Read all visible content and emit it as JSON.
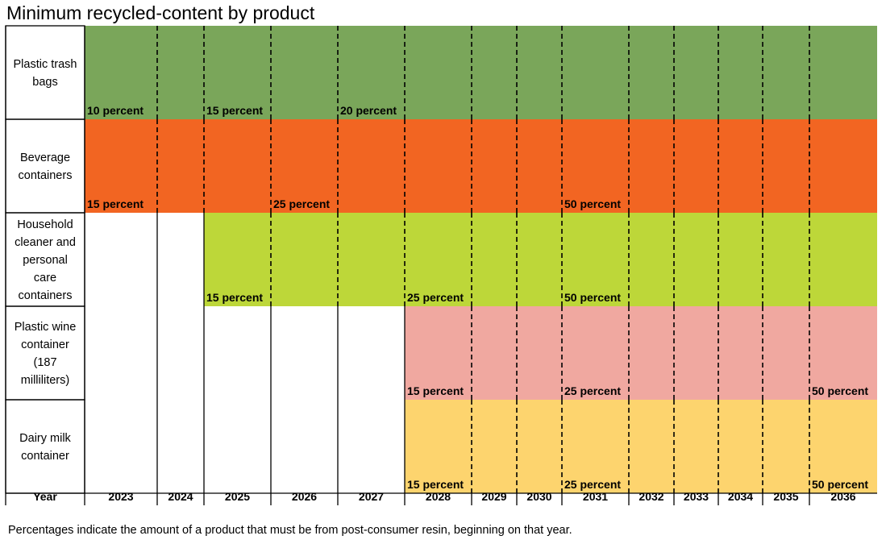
{
  "chart_data": {
    "type": "timeline",
    "title": "Minimum recycled-content by product",
    "year_header": "Year",
    "years": [
      "2023",
      "2024",
      "2025",
      "2026",
      "2027",
      "2028",
      "2029",
      "2030",
      "2031",
      "2032",
      "2033",
      "2034",
      "2035",
      "2036"
    ],
    "rows": [
      {
        "label": "Plastic trash bags",
        "label_lines": [
          "Plastic trash",
          "bags"
        ],
        "color": "#7aa65a",
        "start_year": "2023",
        "milestones": [
          {
            "year": "2023",
            "label": "10 percent",
            "value": 10
          },
          {
            "year": "2025",
            "label": "15 percent",
            "value": 15
          },
          {
            "year": "2027",
            "label": "20 percent",
            "value": 20
          }
        ]
      },
      {
        "label": "Beverage containers",
        "label_lines": [
          "Beverage",
          "containers"
        ],
        "color": "#f26522",
        "start_year": "2023",
        "milestones": [
          {
            "year": "2023",
            "label": "15 percent",
            "value": 15
          },
          {
            "year": "2026",
            "label": "25 percent",
            "value": 25
          },
          {
            "year": "2031",
            "label": "50 percent",
            "value": 50
          }
        ]
      },
      {
        "label": "Household cleaner and personal care containers",
        "label_lines": [
          "Household",
          "cleaner and",
          "personal",
          "care",
          "containers"
        ],
        "color": "#bdd739",
        "start_year": "2025",
        "milestones": [
          {
            "year": "2025",
            "label": "15 percent",
            "value": 15
          },
          {
            "year": "2028",
            "label": "25 percent",
            "value": 25
          },
          {
            "year": "2031",
            "label": "50 percent",
            "value": 50
          }
        ]
      },
      {
        "label": "Plastic wine container (187 milliliters)",
        "label_lines": [
          "Plastic wine",
          "container",
          "(187",
          "milliliters)"
        ],
        "color": "#f0a8a0",
        "start_year": "2028",
        "milestones": [
          {
            "year": "2028",
            "label": "15 percent",
            "value": 15
          },
          {
            "year": "2031",
            "label": "25 percent",
            "value": 25
          },
          {
            "year": "2036",
            "label": "50 percent",
            "value": 50
          }
        ]
      },
      {
        "label": "Dairy milk container",
        "label_lines": [
          "Dairy milk",
          "container"
        ],
        "color": "#fdd46e",
        "start_year": "2028",
        "milestones": [
          {
            "year": "2028",
            "label": "15 percent",
            "value": 15
          },
          {
            "year": "2031",
            "label": "25 percent",
            "value": 25
          },
          {
            "year": "2036",
            "label": "50 percent",
            "value": 50
          }
        ]
      }
    ],
    "dashed_after_years": [
      "2023",
      "2024",
      "2025",
      "2026",
      "2027",
      "2028",
      "2029",
      "2030",
      "2031",
      "2032",
      "2033",
      "2034",
      "2035"
    ],
    "footnote": "Percentages indicate the amount of a product that must be from post-consumer resin, beginning on that year."
  }
}
